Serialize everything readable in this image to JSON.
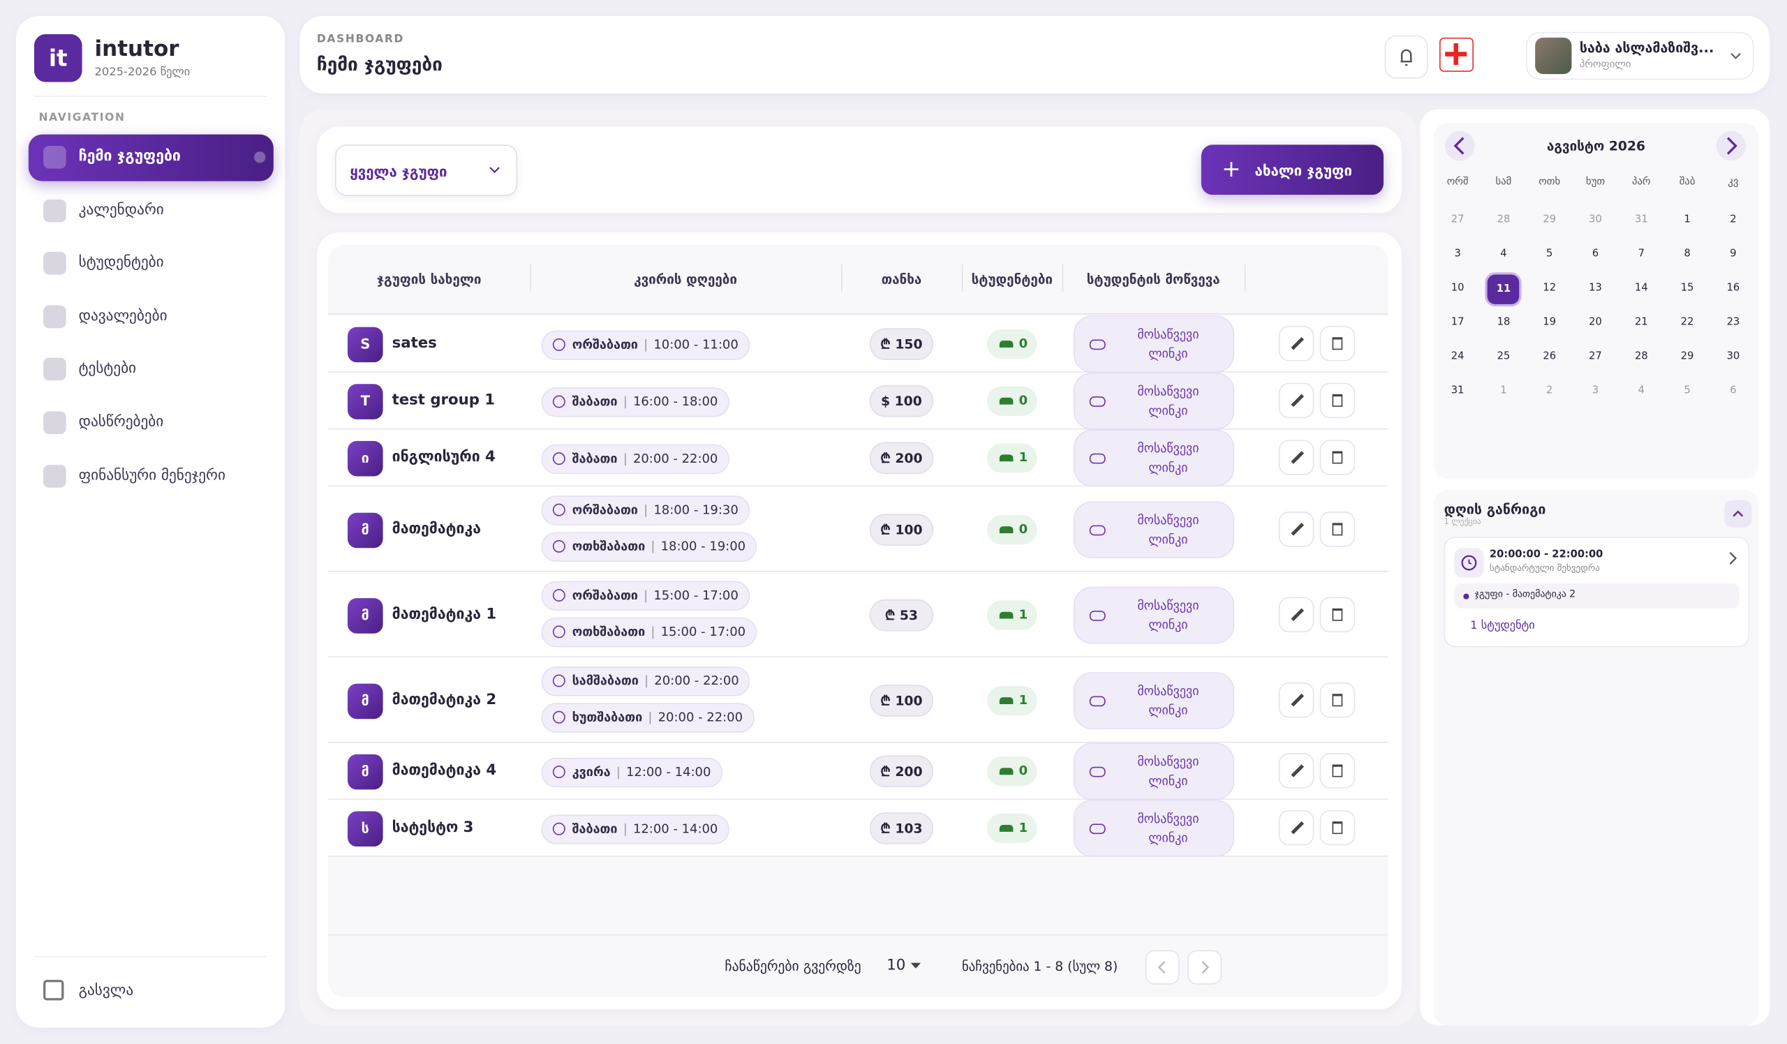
{
  "sidebar": {
    "logo": "it",
    "brand": "intutor",
    "years": "2025-2026 წელი",
    "nav_heading": "NAVIGATION",
    "nav": [
      "ჩემი ჯგუფები",
      "კალენდარი",
      "სტუდენტები",
      "დავალებები",
      "ტესტები",
      "დასწრებები",
      "ფინანსური მენეჯერი"
    ],
    "logout": "გასვლა"
  },
  "header": {
    "eyebrow": "DASHBOARD",
    "title": "ჩემი ჯგუფები",
    "user_name": "საბა ასლამაზიშვ...",
    "user_role": "პროფილი"
  },
  "toolbar": {
    "filter": "ყველა ჯგუფი",
    "new_button": "ახალი ჯგუფი"
  },
  "table": {
    "columns": [
      "ჯგუფის სახელი",
      "კვირის დღეები",
      "თანხა",
      "სტუდენტები",
      "სტუდენტის მოწვევა"
    ],
    "invite_label": "მოსაწვევი ლინკი",
    "rows": [
      {
        "initial": "S",
        "name": "sates",
        "days": [
          {
            "day": "ორშაბათი",
            "time": "10:00 - 11:00"
          }
        ],
        "price": "₾ 150",
        "students": 0
      },
      {
        "initial": "T",
        "name": "test group 1",
        "days": [
          {
            "day": "შაბათი",
            "time": "16:00 - 18:00"
          }
        ],
        "price": "$ 100",
        "students": 0
      },
      {
        "initial": "ი",
        "name": "ინგლისური 4",
        "days": [
          {
            "day": "შაბათი",
            "time": "20:00 - 22:00"
          }
        ],
        "price": "₾ 200",
        "students": 1
      },
      {
        "initial": "მ",
        "name": "მათემატიკა",
        "days": [
          {
            "day": "ორშაბათი",
            "time": "18:00 - 19:30"
          },
          {
            "day": "ოთხშაბათი",
            "time": "18:00 - 19:00"
          }
        ],
        "price": "₾ 100",
        "students": 0
      },
      {
        "initial": "მ",
        "name": "მათემატიკა 1",
        "days": [
          {
            "day": "ორშაბათი",
            "time": "15:00 - 17:00"
          },
          {
            "day": "ოთხშაბათი",
            "time": "15:00 - 17:00"
          }
        ],
        "price": "₾ 53",
        "students": 1
      },
      {
        "initial": "მ",
        "name": "მათემატიკა 2",
        "days": [
          {
            "day": "სამშაბათი",
            "time": "20:00 - 22:00"
          },
          {
            "day": "ხუთშაბათი",
            "time": "20:00 - 22:00"
          }
        ],
        "price": "₾ 100",
        "students": 1
      },
      {
        "initial": "მ",
        "name": "მათემატიკა 4",
        "days": [
          {
            "day": "კვირა",
            "time": "12:00 - 14:00"
          }
        ],
        "price": "₾ 200",
        "students": 0
      },
      {
        "initial": "ს",
        "name": "სატესტო 3",
        "days": [
          {
            "day": "შაბათი",
            "time": "12:00 - 14:00"
          }
        ],
        "price": "₾ 103",
        "students": 1
      }
    ],
    "footer": {
      "per_page_label": "ჩანაწერები გვერდზე",
      "per_page": 10,
      "summary": "ნაჩვენებია 1 - 8 (სულ 8)"
    }
  },
  "calendar": {
    "month": "აგვისტო 2026",
    "weekdays": [
      "ორშ",
      "სამ",
      "ოთხ",
      "ხუთ",
      "პარ",
      "შაბ",
      "კვ"
    ],
    "leading_days": [
      27,
      28,
      29,
      30,
      31
    ],
    "month_days": [
      1,
      2,
      3,
      4,
      5,
      6,
      7,
      8,
      9,
      10,
      11,
      12,
      13,
      14,
      15,
      16,
      17,
      18,
      19,
      20,
      21,
      22,
      23,
      24,
      25,
      26,
      27,
      28,
      29,
      30,
      31
    ],
    "trailing_days": [
      1,
      2,
      3,
      4,
      5,
      6
    ],
    "selected_day": 11
  },
  "schedule": {
    "title": "დღის განრიგი",
    "subtitle": "1 ლექცია",
    "time": "20:00:00 - 22:00:00",
    "kind": "სტანდარტული შეხვედრა",
    "group": "ჯგუფი - მათემატიკა 2",
    "students": "1 სტუდენტი"
  }
}
